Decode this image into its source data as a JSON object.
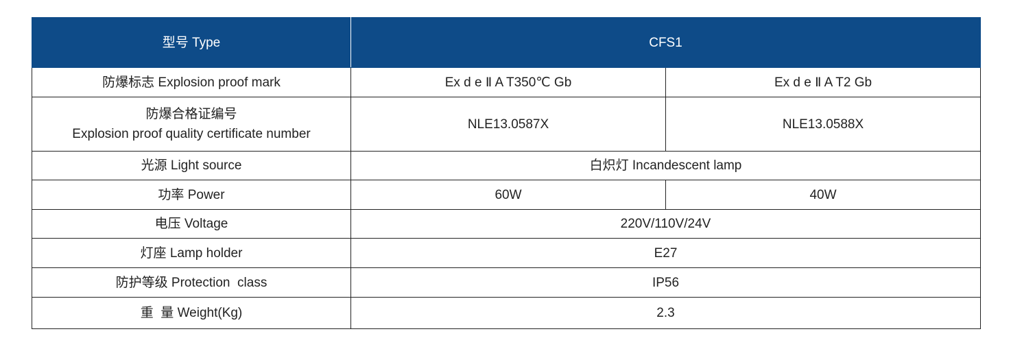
{
  "header": {
    "label": "型号 Type",
    "model": "CFS1"
  },
  "rows": [
    {
      "label": "防爆标志 Explosion proof mark",
      "values": [
        "Ex d e Ⅱ A T350℃ Gb",
        "Ex d e Ⅱ A T2 Gb"
      ]
    },
    {
      "label_cn": "防爆合格证编号",
      "label_en": "Explosion proof quality certificate number",
      "values": [
        "NLE13.0587X",
        "NLE13.0588X"
      ]
    },
    {
      "label": "光源 Light source",
      "values": [
        "白炽灯 Incandescent lamp"
      ]
    },
    {
      "label": "功率 Power",
      "values": [
        "60W",
        "40W"
      ]
    },
    {
      "label": "电压 Voltage",
      "values": [
        "220V/110V/24V"
      ]
    },
    {
      "label": "灯座 Lamp holder",
      "values": [
        "E27"
      ]
    },
    {
      "label": "防护等级 Protection  class",
      "values": [
        "IP56"
      ]
    },
    {
      "label": "重  量 Weight(Kg)",
      "values": [
        "2.3"
      ]
    }
  ],
  "colors": {
    "header_bg": "#0e4b88"
  }
}
